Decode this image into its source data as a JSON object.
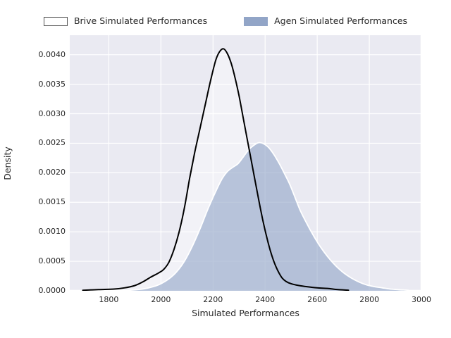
{
  "figure": {
    "background": "#ffffff",
    "plot_background": "#eaeaf2",
    "grid_color": "#ffffff",
    "text_color": "#262626"
  },
  "legend": {
    "items": [
      {
        "label": "Brive Simulated Performances",
        "swatch_fill": "#ffffff",
        "swatch_border": "#555555"
      },
      {
        "label": "Agen Simulated Performances",
        "swatch_fill": "#92a5c7",
        "swatch_border": "#92a5c7"
      }
    ]
  },
  "chart_data": {
    "type": "area",
    "subtype": "kde-density",
    "title": "",
    "xlabel": "Simulated Performances",
    "ylabel": "Density",
    "xlim": [
      1650,
      3000
    ],
    "ylim": [
      0,
      0.00433
    ],
    "xticks": [
      1800,
      2000,
      2200,
      2400,
      2600,
      2800,
      3000
    ],
    "xtick_labels": [
      "1800",
      "2000",
      "2200",
      "2400",
      "2600",
      "2800",
      "3000"
    ],
    "yticks": [
      0,
      0.0005,
      0.001,
      0.0015,
      0.002,
      0.0025,
      0.003,
      0.0035,
      0.004
    ],
    "ytick_labels": [
      "0.0000",
      "0.0005",
      "0.0010",
      "0.0015",
      "0.0020",
      "0.0025",
      "0.0030",
      "0.0035",
      "0.0040"
    ],
    "grid": true,
    "legend_position": "top-center",
    "series": [
      {
        "name": "Brive Simulated Performances",
        "style": "line-with-faint-white-fill",
        "line_color": "#000000",
        "line_width": 2,
        "fill_color": "rgba(255,255,255,0.4)",
        "peak": {
          "x": 2240,
          "y": 0.0041
        },
        "points": [
          [
            1700,
            1e-05
          ],
          [
            1760,
            2e-05
          ],
          [
            1820,
            3e-05
          ],
          [
            1860,
            5e-05
          ],
          [
            1900,
            9e-05
          ],
          [
            1930,
            0.00015
          ],
          [
            1960,
            0.00023
          ],
          [
            1990,
            0.0003
          ],
          [
            2010,
            0.00036
          ],
          [
            2030,
            0.00048
          ],
          [
            2050,
            0.0007
          ],
          [
            2070,
            0.001
          ],
          [
            2090,
            0.0014
          ],
          [
            2110,
            0.0019
          ],
          [
            2130,
            0.00235
          ],
          [
            2150,
            0.00275
          ],
          [
            2170,
            0.00315
          ],
          [
            2190,
            0.00355
          ],
          [
            2210,
            0.0039
          ],
          [
            2225,
            0.00405
          ],
          [
            2240,
            0.0041
          ],
          [
            2255,
            0.00402
          ],
          [
            2270,
            0.00385
          ],
          [
            2285,
            0.0036
          ],
          [
            2300,
            0.0033
          ],
          [
            2315,
            0.00295
          ],
          [
            2330,
            0.0026
          ],
          [
            2345,
            0.00225
          ],
          [
            2360,
            0.0019
          ],
          [
            2375,
            0.00155
          ],
          [
            2390,
            0.00122
          ],
          [
            2405,
            0.00093
          ],
          [
            2420,
            0.00068
          ],
          [
            2435,
            0.00048
          ],
          [
            2450,
            0.00033
          ],
          [
            2465,
            0.00022
          ],
          [
            2480,
            0.00016
          ],
          [
            2500,
            0.00012
          ],
          [
            2530,
            9e-05
          ],
          [
            2560,
            7e-05
          ],
          [
            2600,
            5e-05
          ],
          [
            2640,
            4e-05
          ],
          [
            2680,
            2e-05
          ],
          [
            2720,
            1e-05
          ]
        ]
      },
      {
        "name": "Agen Simulated Performances",
        "style": "filled-with-white-edge",
        "line_color": "#ffffff",
        "line_width": 1.8,
        "fill_color": "rgba(143,163,198,0.6)",
        "peak": {
          "x": 2375,
          "y": 0.00251
        },
        "points": [
          [
            1880,
            1e-05
          ],
          [
            1930,
            3e-05
          ],
          [
            1970,
            7e-05
          ],
          [
            2000,
            0.00012
          ],
          [
            2030,
            0.0002
          ],
          [
            2060,
            0.00032
          ],
          [
            2090,
            0.0005
          ],
          [
            2120,
            0.00075
          ],
          [
            2150,
            0.00105
          ],
          [
            2180,
            0.00138
          ],
          [
            2210,
            0.00168
          ],
          [
            2235,
            0.0019
          ],
          [
            2255,
            0.00202
          ],
          [
            2275,
            0.00209
          ],
          [
            2295,
            0.00215
          ],
          [
            2315,
            0.00226
          ],
          [
            2335,
            0.00238
          ],
          [
            2355,
            0.00246
          ],
          [
            2375,
            0.00251
          ],
          [
            2395,
            0.00249
          ],
          [
            2415,
            0.00242
          ],
          [
            2435,
            0.0023
          ],
          [
            2455,
            0.00215
          ],
          [
            2475,
            0.00198
          ],
          [
            2495,
            0.0018
          ],
          [
            2515,
            0.00158
          ],
          [
            2535,
            0.00136
          ],
          [
            2560,
            0.00114
          ],
          [
            2585,
            0.00094
          ],
          [
            2610,
            0.00076
          ],
          [
            2640,
            0.00058
          ],
          [
            2670,
            0.00043
          ],
          [
            2700,
            0.00031
          ],
          [
            2730,
            0.00022
          ],
          [
            2760,
            0.00015
          ],
          [
            2790,
            0.0001
          ],
          [
            2820,
            7e-05
          ],
          [
            2850,
            5e-05
          ],
          [
            2880,
            3e-05
          ],
          [
            2910,
            2e-05
          ],
          [
            2950,
            1e-05
          ]
        ]
      }
    ]
  }
}
